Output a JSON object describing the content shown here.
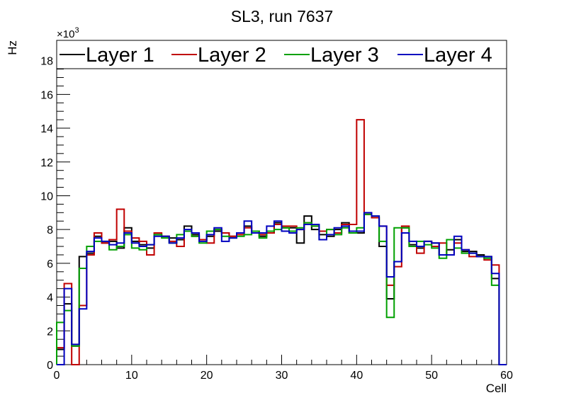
{
  "chart_data": {
    "type": "histogram-step",
    "title": "SL3, run 7637",
    "xlabel": "Cell",
    "ylabel": "Hz",
    "y_multiplier": "×10",
    "y_multiplier_exp": "3",
    "xlim": [
      0,
      60
    ],
    "ylim": [
      0,
      19.2
    ],
    "x_ticks": [
      "0",
      "10",
      "20",
      "30",
      "40",
      "50",
      "60"
    ],
    "y_ticks": [
      "0",
      "2",
      "4",
      "6",
      "8",
      "10",
      "12",
      "14",
      "16",
      "18"
    ],
    "legend_position": "top",
    "series": [
      {
        "name": "Layer 1",
        "color": "#000000",
        "values": [
          0.9,
          3.6,
          1.1,
          6.4,
          6.6,
          7.6,
          7.2,
          7.3,
          6.9,
          8.1,
          7.3,
          7.1,
          6.9,
          7.7,
          7.6,
          7.5,
          7.4,
          8.2,
          7.7,
          7.4,
          7.6,
          7.9,
          7.8,
          7.6,
          7.8,
          8.2,
          7.9,
          7.6,
          7.8,
          8.4,
          8.1,
          8.1,
          7.2,
          8.8,
          8.0,
          7.7,
          7.6,
          8.0,
          8.4,
          7.8,
          7.8,
          8.9,
          8.7,
          7.0,
          3.9,
          6.1,
          8.1,
          7.1,
          6.9,
          7.3,
          7.2,
          6.5,
          6.8,
          7.4,
          6.7,
          6.7,
          6.5,
          6.4,
          5.1,
          0.0
        ]
      },
      {
        "name": "Layer 2",
        "color": "#c00000",
        "values": [
          1.0,
          4.8,
          0.0,
          3.5,
          6.5,
          7.8,
          7.2,
          7.4,
          9.2,
          7.9,
          7.5,
          7.3,
          6.5,
          7.8,
          7.6,
          7.3,
          7.0,
          7.9,
          7.6,
          7.4,
          7.2,
          8.0,
          7.8,
          7.6,
          7.7,
          8.1,
          7.9,
          7.7,
          7.8,
          8.3,
          8.2,
          8.2,
          8.0,
          8.4,
          8.2,
          7.9,
          8.0,
          7.8,
          8.3,
          8.3,
          14.5,
          8.9,
          8.7,
          8.2,
          4.7,
          5.8,
          8.2,
          7.0,
          6.6,
          7.3,
          7.0,
          7.2,
          6.5,
          7.2,
          6.8,
          6.4,
          6.4,
          6.2,
          5.9,
          0.0
        ]
      },
      {
        "name": "Layer 3",
        "color": "#00a000",
        "values": [
          2.5,
          3.2,
          1.1,
          5.7,
          7.0,
          7.3,
          7.3,
          6.8,
          7.0,
          7.7,
          6.9,
          6.8,
          7.1,
          7.7,
          7.5,
          7.2,
          7.7,
          7.9,
          7.6,
          7.2,
          7.9,
          8.0,
          7.6,
          7.5,
          7.6,
          7.7,
          7.9,
          7.5,
          7.9,
          8.0,
          8.1,
          7.9,
          8.1,
          8.4,
          8.2,
          7.4,
          8.0,
          7.7,
          8.1,
          7.8,
          8.1,
          8.9,
          8.8,
          7.3,
          2.8,
          8.1,
          8.1,
          7.0,
          7.3,
          7.1,
          6.9,
          6.3,
          7.4,
          6.9,
          6.6,
          6.6,
          6.4,
          6.3,
          4.7,
          0.0
        ]
      },
      {
        "name": "Layer 4",
        "color": "#0000c0",
        "values": [
          0.0,
          4.5,
          1.2,
          3.3,
          6.7,
          7.5,
          7.3,
          7.1,
          7.2,
          7.8,
          7.2,
          7.0,
          7.1,
          7.6,
          7.6,
          7.2,
          7.5,
          8.0,
          7.8,
          7.3,
          7.7,
          8.1,
          7.3,
          7.5,
          7.8,
          8.5,
          7.8,
          7.8,
          8.2,
          8.5,
          7.9,
          7.8,
          8.0,
          8.3,
          8.3,
          7.4,
          7.7,
          8.1,
          8.2,
          7.9,
          7.9,
          9.0,
          8.8,
          8.2,
          5.2,
          6.1,
          7.8,
          7.3,
          7.0,
          7.3,
          7.2,
          6.5,
          6.5,
          7.6,
          6.8,
          6.6,
          6.4,
          6.4,
          5.4,
          0.0
        ]
      }
    ]
  }
}
